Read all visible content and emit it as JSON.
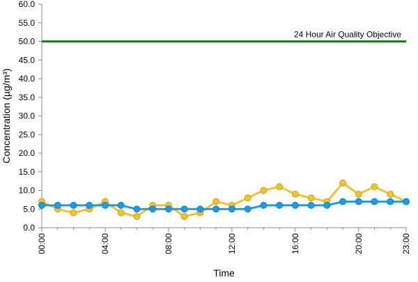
{
  "chart_data": {
    "type": "line",
    "title": "",
    "xlabel": "Time",
    "ylabel": "Concentration (µg/m³)",
    "x": [
      "00:00",
      "01:00",
      "02:00",
      "03:00",
      "04:00",
      "05:00",
      "06:00",
      "07:00",
      "08:00",
      "09:00",
      "10:00",
      "11:00",
      "12:00",
      "13:00",
      "14:00",
      "15:00",
      "16:00",
      "17:00",
      "18:00",
      "19:00",
      "20:00",
      "21:00",
      "22:00",
      "23:00"
    ],
    "x_tick_labels": [
      "00:00",
      "04:00",
      "08:00",
      "12:00",
      "16:00",
      "20:00",
      "23:00"
    ],
    "ylim": [
      0,
      60
    ],
    "y_tick_labels": [
      "0.0",
      "5.0",
      "10.0",
      "15.0",
      "20.0",
      "25.0",
      "30.0",
      "35.0",
      "40.0",
      "45.0",
      "50.0",
      "55.0",
      "60.0"
    ],
    "grid": false,
    "legend": "none",
    "series": [
      {
        "color": "#f2c12e",
        "values": [
          7,
          5,
          4,
          5,
          7,
          4,
          3,
          6,
          6,
          3,
          4,
          7,
          6,
          8,
          10,
          11,
          9,
          8,
          7,
          12,
          9,
          11,
          9,
          7
        ]
      },
      {
        "color": "#1e9be8",
        "values": [
          6,
          6,
          6,
          6,
          6,
          6,
          5,
          5,
          5,
          5,
          5,
          5,
          5,
          5,
          6,
          6,
          6,
          6,
          6,
          7,
          7,
          7,
          7,
          7
        ]
      }
    ],
    "reference_lines": [
      {
        "label": "24 Hour Air Quality Objective",
        "value": 50,
        "color": "#1f7a1f"
      }
    ]
  }
}
